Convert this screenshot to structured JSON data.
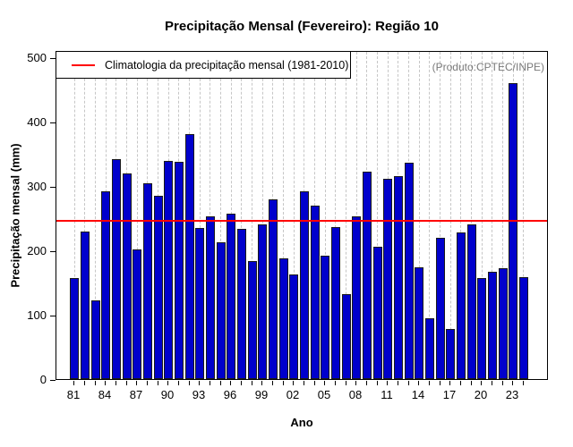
{
  "title": "Precipitação Mensal (Fevereiro): Região 10",
  "annotation": "(Produto:CPTEC/INPE)",
  "legend": {
    "label": "Climatologia da precipitação mensal (1981-2010)"
  },
  "colors": {
    "bar_fill": "#0000CC",
    "bar_border": "#1a1a1a",
    "climatology_line": "#FF0000",
    "gridline": "#c6c6c6",
    "annotation_text": "#7a7a7a",
    "axis": "#000000"
  },
  "chart_data": {
    "type": "bar",
    "title": "Precipitação Mensal (Fevereiro): Região 10",
    "xlabel": "Ano",
    "ylabel": "Precipitação mensal (mm)",
    "ylim": [
      0,
      500
    ],
    "yticks": [
      0,
      100,
      200,
      300,
      400,
      500
    ],
    "x_tick_labels": [
      "81",
      "84",
      "87",
      "90",
      "93",
      "96",
      "99",
      "02",
      "05",
      "08",
      "11",
      "14",
      "17",
      "20",
      "23"
    ],
    "x_tick_label_step": 3,
    "grid": "vertical-dashed",
    "legend_position": "top-left",
    "legend_label": "Climatologia da precipitação mensal (1981-2010)",
    "climatology_value": 249,
    "categories": [
      1981,
      1982,
      1983,
      1984,
      1985,
      1986,
      1987,
      1988,
      1989,
      1990,
      1991,
      1992,
      1993,
      1994,
      1995,
      1996,
      1997,
      1998,
      1999,
      2000,
      2001,
      2002,
      2003,
      2004,
      2005,
      2006,
      2007,
      2008,
      2009,
      2010,
      2011,
      2012,
      2013,
      2014,
      2015,
      2016,
      2017,
      2018,
      2019,
      2020,
      2021,
      2022,
      2023,
      2024
    ],
    "values": [
      157,
      229,
      122,
      292,
      342,
      319,
      202,
      304,
      285,
      339,
      338,
      380,
      235,
      253,
      212,
      257,
      234,
      183,
      240,
      279,
      188,
      162,
      291,
      270,
      191,
      236,
      132,
      253,
      322,
      205,
      311,
      315,
      336,
      174,
      94,
      219,
      78,
      228,
      240,
      157,
      167,
      172,
      460,
      158
    ]
  }
}
